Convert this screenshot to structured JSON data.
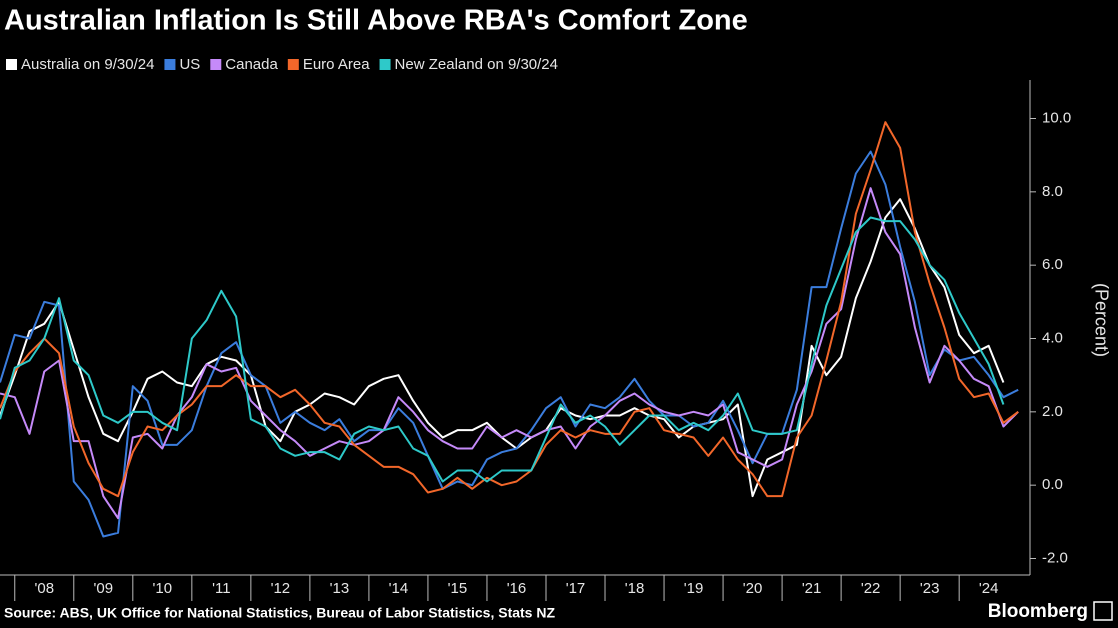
{
  "chart_data": {
    "type": "line",
    "title": "Australian Inflation Is Still Above RBA's Comfort Zone",
    "y_label": "(Percent)",
    "source": "Source: ABS, UK Office for National Statistics, Bureau of Labor Statistics, Stats NZ",
    "brand": "Bloomberg",
    "x": [
      2007.75,
      2008,
      2008.25,
      2008.5,
      2008.75,
      2009,
      2009.25,
      2009.5,
      2009.75,
      2010,
      2010.25,
      2010.5,
      2010.75,
      2011,
      2011.25,
      2011.5,
      2011.75,
      2012,
      2012.25,
      2012.5,
      2012.75,
      2013,
      2013.25,
      2013.5,
      2013.75,
      2014,
      2014.25,
      2014.5,
      2014.75,
      2015,
      2015.25,
      2015.5,
      2015.75,
      2016,
      2016.25,
      2016.5,
      2016.75,
      2017,
      2017.25,
      2017.5,
      2017.75,
      2018,
      2018.25,
      2018.5,
      2018.75,
      2019,
      2019.25,
      2019.5,
      2019.75,
      2020,
      2020.25,
      2020.5,
      2020.75,
      2021,
      2021.25,
      2021.5,
      2021.75,
      2022,
      2022.25,
      2022.5,
      2022.75,
      2023,
      2023.25,
      2023.5,
      2023.75,
      2024,
      2024.25,
      2024.5,
      2024.75,
      2025
    ],
    "xlim": [
      2007.75,
      2025.2
    ],
    "xticks": [
      {
        "value": 2008.5,
        "label": "'08"
      },
      {
        "value": 2009.5,
        "label": "'09"
      },
      {
        "value": 2010.5,
        "label": "'10"
      },
      {
        "value": 2011.5,
        "label": "'11"
      },
      {
        "value": 2012.5,
        "label": "'12"
      },
      {
        "value": 2013.5,
        "label": "'13"
      },
      {
        "value": 2014.5,
        "label": "'14"
      },
      {
        "value": 2015.5,
        "label": "'15"
      },
      {
        "value": 2016.5,
        "label": "'16"
      },
      {
        "value": 2017.5,
        "label": "'17"
      },
      {
        "value": 2018.5,
        "label": "'18"
      },
      {
        "value": 2019.5,
        "label": "'19"
      },
      {
        "value": 2020.5,
        "label": "'20"
      },
      {
        "value": 2021.5,
        "label": "'21"
      },
      {
        "value": 2022.5,
        "label": "'22"
      },
      {
        "value": 2023.5,
        "label": "'23"
      },
      {
        "value": 2024.5,
        "label": "'24"
      }
    ],
    "ylim": [
      -2.45,
      11.05
    ],
    "yticks": [
      {
        "value": 10,
        "label": "10.0"
      },
      {
        "value": 8,
        "label": "8.0"
      },
      {
        "value": 6,
        "label": "6.0"
      },
      {
        "value": 4,
        "label": "4.0"
      },
      {
        "value": 2,
        "label": "2.0"
      },
      {
        "value": 0,
        "label": "0.0"
      },
      {
        "value": -2,
        "label": "-2.0"
      }
    ],
    "grid": false,
    "legend": "top-left",
    "series": [
      {
        "name": "Australia on 9/30/24",
        "color": "#ffffff",
        "values": [
          1.9,
          3.0,
          4.2,
          4.4,
          5.0,
          3.7,
          2.4,
          1.4,
          1.2,
          2.0,
          2.9,
          3.1,
          2.8,
          2.7,
          3.3,
          3.5,
          3.4,
          3.0,
          1.6,
          1.2,
          2.0,
          2.2,
          2.5,
          2.4,
          2.2,
          2.7,
          2.9,
          3.0,
          2.3,
          1.7,
          1.3,
          1.5,
          1.5,
          1.7,
          1.3,
          1.0,
          1.3,
          1.5,
          2.1,
          1.9,
          1.8,
          1.9,
          1.9,
          2.1,
          1.9,
          1.8,
          1.3,
          1.6,
          1.7,
          1.8,
          2.2,
          -0.3,
          0.7,
          0.9,
          1.1,
          3.8,
          3.0,
          3.5,
          5.1,
          6.1,
          7.3,
          7.8,
          7.0,
          6.0,
          5.4,
          4.1,
          3.6,
          3.8,
          2.8,
          null
        ]
      },
      {
        "name": "US",
        "color": "#3b7ddd",
        "values": [
          2.8,
          4.1,
          4.0,
          5.0,
          4.9,
          0.1,
          -0.4,
          -1.4,
          -1.3,
          2.7,
          2.3,
          1.1,
          1.1,
          1.5,
          2.7,
          3.6,
          3.9,
          3.0,
          2.7,
          1.7,
          2.0,
          1.7,
          1.5,
          1.8,
          1.2,
          1.5,
          1.5,
          2.1,
          1.7,
          0.8,
          -0.1,
          0.1,
          0.0,
          0.7,
          0.9,
          1.0,
          1.5,
          2.1,
          2.4,
          1.6,
          2.2,
          2.1,
          2.4,
          2.9,
          2.3,
          1.9,
          1.9,
          1.6,
          1.7,
          2.3,
          1.5,
          0.6,
          1.4,
          1.4,
          2.6,
          5.4,
          5.4,
          7.0,
          8.5,
          9.1,
          8.2,
          6.5,
          5.0,
          3.0,
          3.7,
          3.4,
          3.5,
          3.0,
          2.4,
          2.6
        ]
      },
      {
        "name": "Canada",
        "color": "#c58af9",
        "values": [
          2.5,
          2.4,
          1.4,
          3.1,
          3.4,
          1.2,
          1.2,
          -0.3,
          -0.9,
          1.3,
          1.4,
          1.0,
          1.9,
          2.4,
          3.3,
          3.1,
          3.2,
          2.3,
          1.9,
          1.5,
          1.2,
          0.8,
          1.0,
          1.2,
          1.1,
          1.2,
          1.5,
          2.4,
          2.0,
          1.5,
          1.2,
          1.0,
          1.0,
          1.6,
          1.3,
          1.5,
          1.3,
          1.5,
          1.6,
          1.0,
          1.6,
          1.9,
          2.3,
          2.5,
          2.2,
          2.0,
          1.9,
          2.0,
          1.9,
          2.2,
          0.9,
          0.7,
          0.5,
          0.7,
          2.2,
          3.1,
          4.4,
          4.8,
          6.7,
          8.1,
          6.9,
          6.3,
          4.3,
          2.8,
          3.8,
          3.4,
          2.9,
          2.7,
          1.6,
          2.0
        ]
      },
      {
        "name": "Euro Area",
        "color": "#f2672a",
        "values": [
          2.1,
          3.1,
          3.6,
          4.0,
          3.6,
          1.6,
          0.6,
          -0.1,
          -0.3,
          0.9,
          1.6,
          1.5,
          1.9,
          2.2,
          2.7,
          2.7,
          3.0,
          2.7,
          2.7,
          2.4,
          2.6,
          2.2,
          1.7,
          1.6,
          1.1,
          0.8,
          0.5,
          0.5,
          0.3,
          -0.2,
          -0.1,
          0.2,
          -0.1,
          0.2,
          0.0,
          0.1,
          0.4,
          1.1,
          1.5,
          1.3,
          1.5,
          1.4,
          1.4,
          2.0,
          2.1,
          1.5,
          1.4,
          1.3,
          0.8,
          1.3,
          0.7,
          0.3,
          -0.3,
          -0.3,
          1.3,
          1.9,
          3.4,
          5.0,
          7.4,
          8.6,
          9.9,
          9.2,
          6.9,
          5.5,
          4.3,
          2.9,
          2.4,
          2.5,
          1.7,
          2.0
        ]
      },
      {
        "name": "New Zealand on 9/30/24",
        "color": "#2ec9c9",
        "values": [
          1.8,
          3.2,
          3.4,
          4.0,
          5.1,
          3.4,
          3.0,
          1.9,
          1.7,
          2.0,
          2.0,
          1.7,
          1.5,
          4.0,
          4.5,
          5.3,
          4.6,
          1.8,
          1.6,
          1.0,
          0.8,
          0.9,
          0.9,
          0.7,
          1.4,
          1.6,
          1.5,
          1.6,
          1.0,
          0.8,
          0.1,
          0.4,
          0.4,
          0.1,
          0.4,
          0.4,
          0.4,
          1.3,
          2.2,
          1.7,
          1.9,
          1.6,
          1.1,
          1.5,
          1.9,
          1.9,
          1.5,
          1.7,
          1.5,
          1.9,
          2.5,
          1.5,
          1.4,
          1.4,
          1.5,
          3.3,
          4.9,
          5.9,
          6.9,
          7.3,
          7.2,
          7.2,
          6.7,
          6.0,
          5.6,
          4.7,
          4.0,
          3.3,
          2.2,
          null
        ]
      }
    ]
  }
}
